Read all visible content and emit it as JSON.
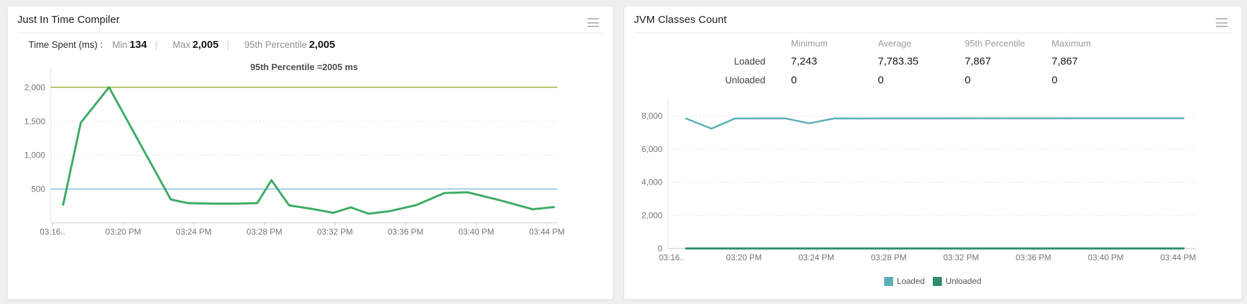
{
  "page": {
    "background": "#f0eff0"
  },
  "jit_panel": {
    "title": "Just In Time Compiler",
    "menu_icon": "hamburger-menu-icon",
    "stats": {
      "label": "Time Spent (ms) :",
      "separator": "|",
      "items": [
        {
          "name": "Min",
          "value": "134"
        },
        {
          "name": "Max",
          "value": "2,005"
        },
        {
          "name": "95th Percentile",
          "value": "2,005"
        }
      ]
    }
  },
  "jvm_panel": {
    "title": "JVM Classes Count",
    "menu_icon": "hamburger-menu-icon",
    "table": {
      "headers": [
        "Minimum",
        "Average",
        "95th Percentile",
        "Maximum"
      ],
      "rows": [
        {
          "label": "Loaded",
          "values": [
            "7,243",
            "7,783.35",
            "7,867",
            "7,867"
          ]
        },
        {
          "label": "Unloaded",
          "values": [
            "0",
            "0",
            "0",
            "0"
          ]
        }
      ]
    },
    "legend": [
      {
        "label": "Loaded",
        "color": "#5aafb4"
      },
      {
        "label": "Unloaded",
        "color": "#2f8c6e"
      }
    ]
  },
  "chart_data": [
    {
      "id": "jit-time-spent",
      "type": "line",
      "title": "95th Percentile =2005 ms",
      "x_unit": "minutes after 3:00 PM",
      "x_domain": [
        15.9,
        44.6
      ],
      "y_domain": [
        0,
        2300
      ],
      "x_ticks": [
        {
          "v": 16,
          "label": "03:16.."
        },
        {
          "v": 20,
          "label": "03:20 PM"
        },
        {
          "v": 24,
          "label": "03:24 PM"
        },
        {
          "v": 28,
          "label": "03:28 PM"
        },
        {
          "v": 32,
          "label": "03:32 PM"
        },
        {
          "v": 36,
          "label": "03:36 PM"
        },
        {
          "v": 40,
          "label": "03:40 PM"
        },
        {
          "v": 44,
          "label": "03:44 PM"
        }
      ],
      "y_ticks": [
        {
          "v": 500,
          "label": "500"
        },
        {
          "v": 1000,
          "label": "1,000"
        },
        {
          "v": 1500,
          "label": "1,500"
        },
        {
          "v": 2000,
          "label": "2,000"
        }
      ],
      "ref_lines": [
        {
          "value": 2005,
          "color": "#a9b43f"
        },
        {
          "value": 500,
          "color": "#8ac4e6"
        }
      ],
      "series": [
        {
          "name": "Time Spent (ms)",
          "color": "#3cab63",
          "width": 3,
          "points": [
            [
              16.6,
              265
            ],
            [
              17.6,
              1480
            ],
            [
              19.2,
              2005
            ],
            [
              22.7,
              345
            ],
            [
              23.7,
              290
            ],
            [
              25.1,
              283
            ],
            [
              26.5,
              283
            ],
            [
              27.6,
              292
            ],
            [
              28.4,
              630
            ],
            [
              29.4,
              258
            ],
            [
              30.7,
              205
            ],
            [
              31.9,
              148
            ],
            [
              32.9,
              228
            ],
            [
              33.9,
              134
            ],
            [
              35.1,
              172
            ],
            [
              36.6,
              262
            ],
            [
              38.2,
              440
            ],
            [
              39.5,
              452
            ],
            [
              41.4,
              330
            ],
            [
              43.2,
              200
            ],
            [
              44.4,
              232
            ]
          ]
        }
      ]
    },
    {
      "id": "jvm-classes-count",
      "type": "line",
      "title": "",
      "x_unit": "minutes after 3:00 PM",
      "x_domain": [
        15.8,
        45.0
      ],
      "y_domain": [
        0,
        9100
      ],
      "x_ticks": [
        {
          "v": 16,
          "label": "03:16.."
        },
        {
          "v": 20,
          "label": "03:20 PM"
        },
        {
          "v": 24,
          "label": "03:24 PM"
        },
        {
          "v": 28,
          "label": "03:28 PM"
        },
        {
          "v": 32,
          "label": "03:32 PM"
        },
        {
          "v": 36,
          "label": "03:36 PM"
        },
        {
          "v": 40,
          "label": "03:40 PM"
        },
        {
          "v": 44,
          "label": "03:44 PM"
        }
      ],
      "y_ticks": [
        {
          "v": 0,
          "label": "0"
        },
        {
          "v": 2000,
          "label": "2,000"
        },
        {
          "v": 4000,
          "label": "4,000"
        },
        {
          "v": 6000,
          "label": "6,000"
        },
        {
          "v": 8000,
          "label": "8,000"
        }
      ],
      "ref_lines": [],
      "series": [
        {
          "name": "Loaded",
          "color": "#5aafb4",
          "width": 2.5,
          "points": [
            [
              16.8,
              7850
            ],
            [
              18.2,
              7243
            ],
            [
              19.5,
              7855
            ],
            [
              21,
              7858
            ],
            [
              22.3,
              7858
            ],
            [
              23.6,
              7560
            ],
            [
              25,
              7858
            ],
            [
              26.4,
              7856
            ],
            [
              27.8,
              7858
            ],
            [
              29.2,
              7860
            ],
            [
              30.6,
              7860
            ],
            [
              32,
              7861
            ],
            [
              33.4,
              7862
            ],
            [
              34.8,
              7862
            ],
            [
              36.2,
              7863
            ],
            [
              37.6,
              7864
            ],
            [
              39,
              7865
            ],
            [
              40.4,
              7866
            ],
            [
              41.8,
              7866
            ],
            [
              43.2,
              7867
            ],
            [
              44.3,
              7867
            ]
          ]
        },
        {
          "name": "Unloaded",
          "color": "#2f8c6e",
          "width": 3,
          "points": [
            [
              16.8,
              0
            ],
            [
              30,
              0
            ],
            [
              44.3,
              0
            ]
          ]
        }
      ]
    }
  ]
}
